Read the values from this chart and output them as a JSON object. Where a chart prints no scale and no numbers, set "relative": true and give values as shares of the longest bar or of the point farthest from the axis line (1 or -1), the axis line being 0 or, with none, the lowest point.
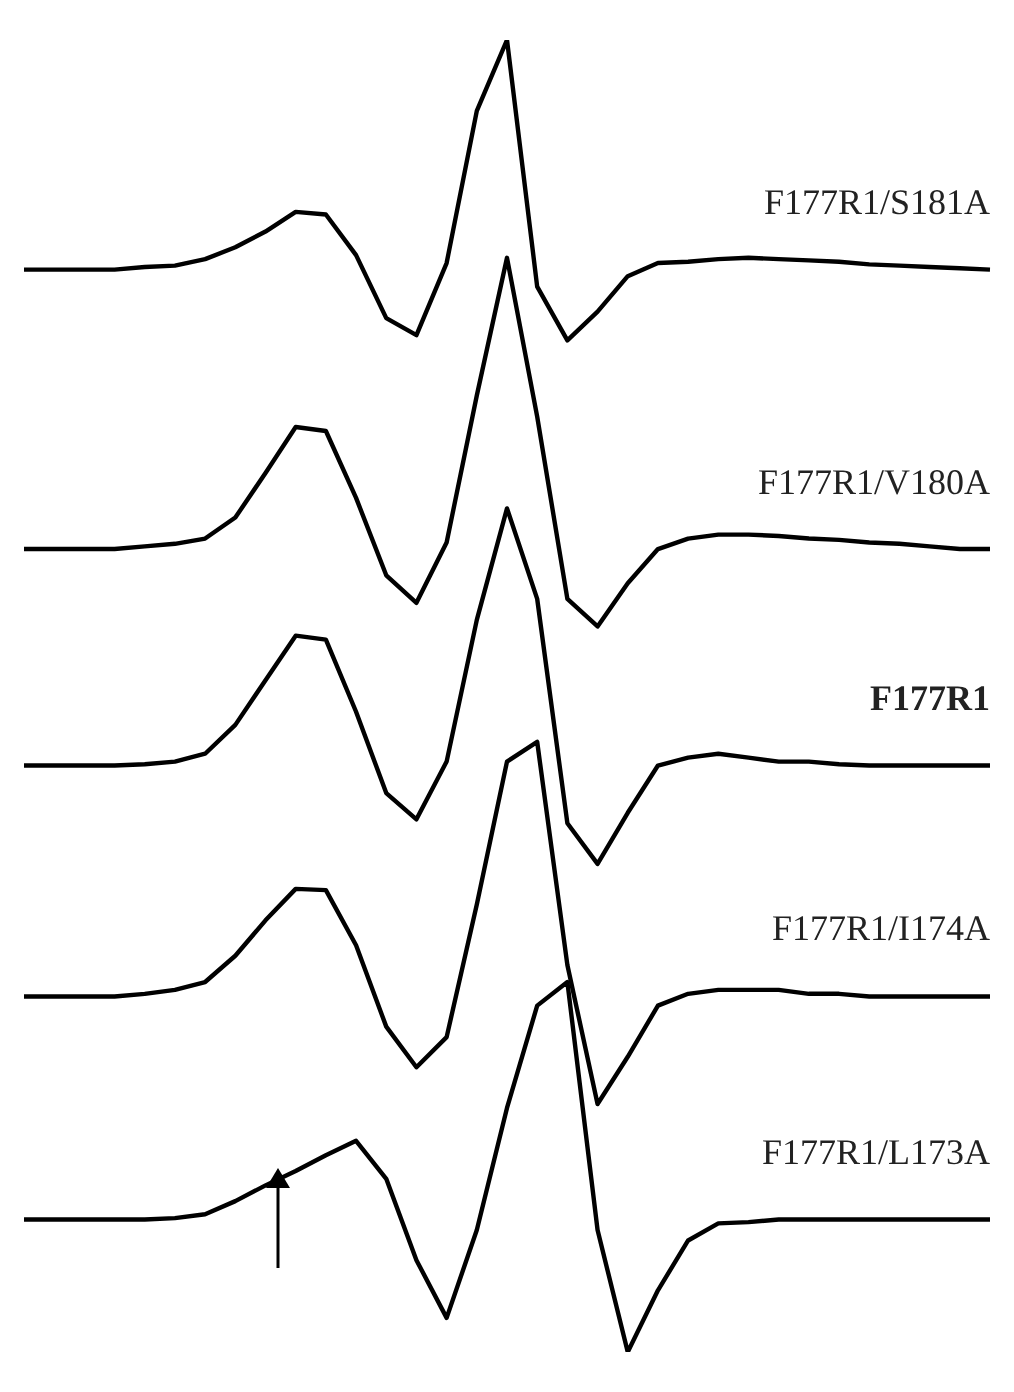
{
  "chart_data": {
    "type": "line",
    "relative": true,
    "categories": [
      null,
      null,
      null,
      null,
      null,
      null,
      null,
      null,
      null,
      null,
      null,
      null,
      null,
      null,
      null,
      null,
      null,
      null,
      null,
      null,
      null,
      null,
      null,
      null,
      null,
      null,
      null,
      null,
      null,
      null,
      null,
      null,
      null
    ],
    "series": [
      {
        "name": "F177R1/S181A",
        "color": "#000000",
        "values": [
          0.825,
          0.825,
          0.825,
          0.825,
          0.827,
          0.828,
          0.833,
          0.842,
          0.854,
          0.869,
          0.867,
          0.836,
          0.788,
          0.775,
          0.83,
          0.946,
          1.0,
          0.812,
          0.771,
          0.793,
          0.82,
          0.83,
          0.831,
          0.833,
          0.834,
          0.833,
          0.832,
          0.831,
          0.829,
          0.828,
          0.827,
          0.826,
          0.825
        ]
      },
      {
        "name": "F177R1/V180A",
        "color": "#000000",
        "values": [
          0.612,
          0.612,
          0.612,
          0.612,
          0.614,
          0.616,
          0.62,
          0.636,
          0.67,
          0.705,
          0.702,
          0.651,
          0.592,
          0.571,
          0.617,
          0.729,
          0.834,
          0.713,
          0.574,
          0.553,
          0.586,
          0.612,
          0.62,
          0.623,
          0.623,
          0.622,
          0.62,
          0.619,
          0.617,
          0.616,
          0.614,
          0.612,
          0.612
        ]
      },
      {
        "name": "F177R1",
        "color": "#000000",
        "values": [
          0.447,
          0.447,
          0.447,
          0.447,
          0.448,
          0.45,
          0.456,
          0.478,
          0.512,
          0.546,
          0.543,
          0.488,
          0.426,
          0.406,
          0.45,
          0.558,
          0.643,
          0.574,
          0.403,
          0.372,
          0.411,
          0.447,
          0.453,
          0.456,
          0.453,
          0.45,
          0.45,
          0.448,
          0.447,
          0.447,
          0.447,
          0.447,
          0.447
        ]
      },
      {
        "name": "F177R1/I174A",
        "color": "#000000",
        "values": [
          0.271,
          0.271,
          0.271,
          0.271,
          0.273,
          0.276,
          0.282,
          0.302,
          0.329,
          0.353,
          0.352,
          0.31,
          0.248,
          0.217,
          0.24,
          0.341,
          0.45,
          0.465,
          0.295,
          0.189,
          0.225,
          0.264,
          0.273,
          0.276,
          0.276,
          0.276,
          0.273,
          0.273,
          0.271,
          0.271,
          0.271,
          0.271,
          0.271
        ]
      },
      {
        "name": "F177R1/L173A",
        "color": "#000000",
        "values": [
          0.101,
          0.101,
          0.101,
          0.101,
          0.101,
          0.102,
          0.105,
          0.115,
          0.127,
          0.138,
          0.15,
          0.161,
          0.132,
          0.07,
          0.026,
          0.093,
          0.186,
          0.264,
          0.282,
          0.093,
          0.0,
          0.047,
          0.085,
          0.098,
          0.099,
          0.101,
          0.101,
          0.101,
          0.101,
          0.101,
          0.101,
          0.101,
          0.101
        ]
      }
    ]
  }
}
